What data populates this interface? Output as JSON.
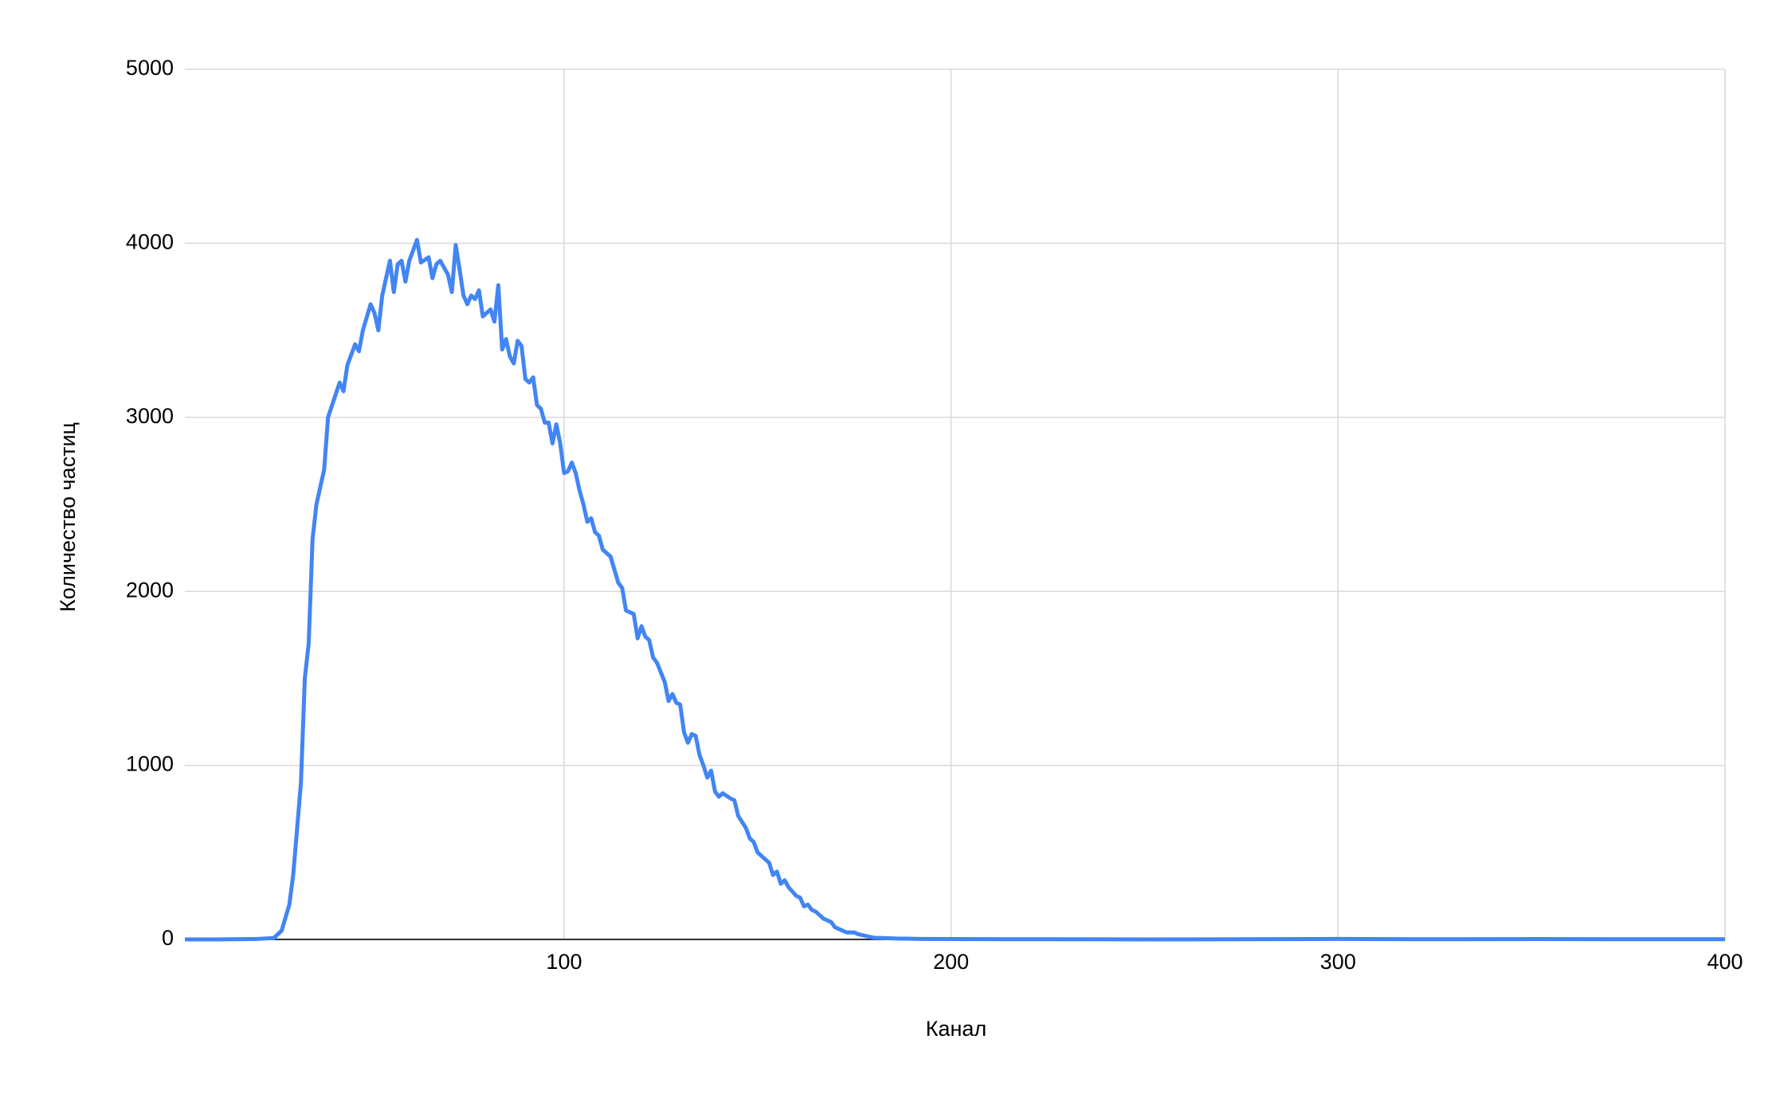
{
  "chart_data": {
    "type": "line",
    "x_label": "Канал",
    "y_label": "Количество частиц",
    "xlim": [
      2,
      400
    ],
    "xticks": [
      100,
      200,
      300,
      400
    ],
    "ylim": [
      0,
      5000
    ],
    "yticks": [
      0,
      1000,
      2000,
      3000,
      4000,
      5000
    ],
    "grid": true,
    "x": [
      2,
      10,
      20,
      25,
      27,
      29,
      30,
      32,
      33,
      34,
      35,
      36,
      38,
      39,
      42,
      43,
      44,
      46,
      47,
      48,
      50,
      51,
      52,
      53,
      54,
      55,
      56,
      57,
      58,
      59,
      60,
      62,
      63,
      65,
      66,
      67,
      68,
      70,
      71,
      72,
      73,
      74,
      75,
      76,
      77,
      78,
      79,
      81,
      82,
      83,
      84,
      85,
      86,
      87,
      88,
      89,
      90,
      91,
      92,
      93,
      94,
      95,
      96,
      97,
      98,
      99,
      100,
      101,
      102,
      103,
      104,
      105,
      106,
      107,
      108,
      109,
      110,
      111,
      112,
      114,
      115,
      116,
      118,
      119,
      120,
      121,
      122,
      123,
      124,
      126,
      127,
      128,
      129,
      130,
      131,
      132,
      133,
      134,
      135,
      136,
      137,
      138,
      139,
      140,
      141,
      143,
      144,
      145,
      147,
      148,
      149,
      150,
      152,
      153,
      154,
      155,
      156,
      157,
      158,
      160,
      161,
      162,
      163,
      164,
      165,
      167,
      168,
      169,
      170,
      172,
      173,
      175,
      176,
      178,
      180,
      186,
      192,
      200,
      225,
      250,
      275,
      300,
      325,
      350,
      375,
      400
    ],
    "series": [
      {
        "color": "#4285f4",
        "values": [
          0,
          0,
          2,
          8,
          50,
          200,
          370,
          900,
          1500,
          1700,
          2300,
          2500,
          2700,
          3000,
          3200,
          3150,
          3300,
          3420,
          3380,
          3500,
          3650,
          3600,
          3500,
          3700,
          3800,
          3900,
          3720,
          3880,
          3900,
          3780,
          3900,
          4020,
          3890,
          3920,
          3800,
          3880,
          3900,
          3820,
          3720,
          3990,
          3850,
          3700,
          3650,
          3700,
          3680,
          3730,
          3580,
          3620,
          3550,
          3760,
          3390,
          3450,
          3350,
          3310,
          3440,
          3410,
          3220,
          3200,
          3230,
          3070,
          3050,
          2970,
          2970,
          2850,
          2960,
          2850,
          2680,
          2690,
          2740,
          2680,
          2580,
          2500,
          2400,
          2420,
          2340,
          2320,
          2240,
          2220,
          2200,
          2050,
          2020,
          1890,
          1870,
          1730,
          1800,
          1740,
          1720,
          1620,
          1590,
          1480,
          1370,
          1410,
          1360,
          1350,
          1190,
          1130,
          1180,
          1170,
          1060,
          1000,
          930,
          970,
          850,
          820,
          840,
          810,
          800,
          710,
          640,
          580,
          560,
          500,
          460,
          440,
          370,
          390,
          320,
          340,
          300,
          250,
          240,
          190,
          200,
          170,
          160,
          120,
          110,
          100,
          70,
          50,
          40,
          40,
          30,
          20,
          10,
          5,
          3,
          2,
          1,
          0,
          1,
          3,
          1,
          2,
          1,
          1
        ]
      }
    ]
  }
}
